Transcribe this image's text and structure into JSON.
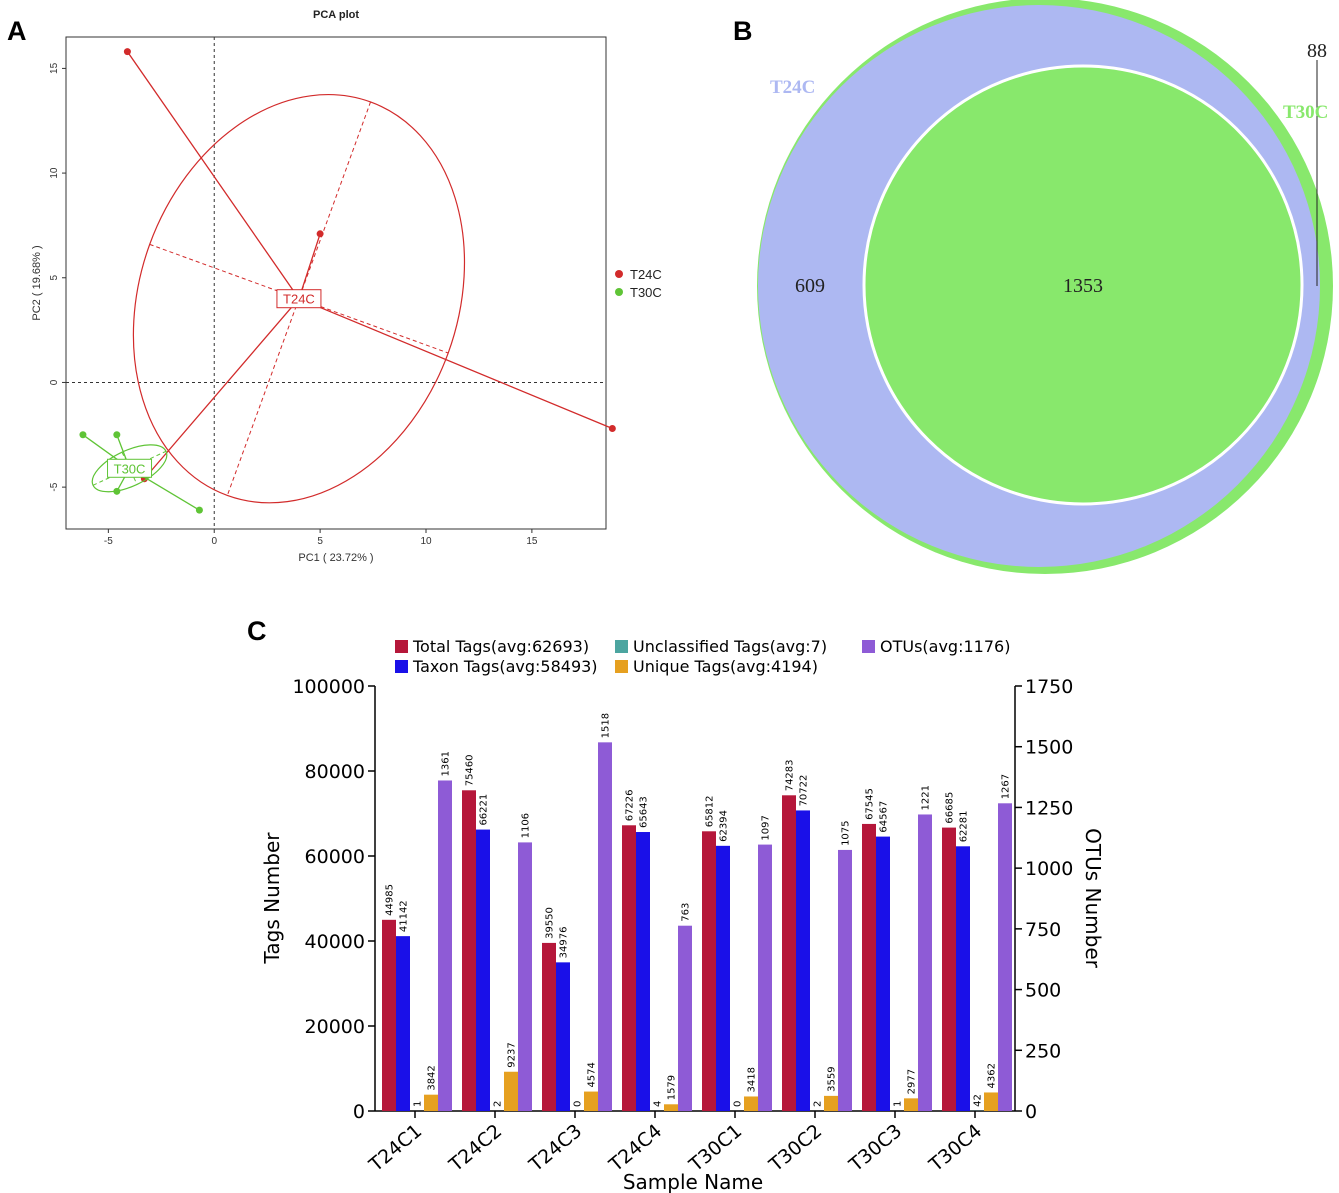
{
  "panels": {
    "a": "A",
    "b": "B",
    "c": "C"
  },
  "chart_data": [
    {
      "type": "scatter",
      "title": "PCA plot",
      "xlabel": "PC1 ( 23.72% )",
      "ylabel": "PC2 ( 19.68% )",
      "xlim": [
        -7,
        18.5
      ],
      "ylim": [
        -7,
        16.5
      ],
      "xticks": [
        -5,
        0,
        5,
        10,
        15
      ],
      "yticks": [
        -5,
        0,
        5,
        10,
        15
      ],
      "xtick_labels": [
        "-5",
        "0",
        "5",
        "10",
        "15"
      ],
      "ytick_labels": [
        "-5",
        "0",
        "5",
        "10",
        "15"
      ],
      "legend_position": "right",
      "series": [
        {
          "name": "T24C",
          "color": "#d22b2b",
          "centroid": [
            4.0,
            4.0
          ],
          "points": [
            [
              -4.1,
              15.8
            ],
            [
              5.0,
              7.1
            ],
            [
              18.8,
              -2.2
            ],
            [
              -3.3,
              -4.6
            ]
          ],
          "ellipse": {
            "center": [
              4.0,
              4.0
            ],
            "rx": 7.5,
            "ry": 10.0,
            "rotation_deg": 20
          }
        },
        {
          "name": "T30C",
          "color": "#5fc436",
          "centroid": [
            -4.0,
            -4.1
          ],
          "points": [
            [
              -6.2,
              -2.5
            ],
            [
              -4.6,
              -2.5
            ],
            [
              -4.6,
              -5.2
            ],
            [
              -0.7,
              -6.1
            ]
          ],
          "ellipse": {
            "center": [
              -4.0,
              -4.1
            ],
            "rx": 1.9,
            "ry": 0.85,
            "rotation_deg": -25
          }
        }
      ]
    },
    {
      "type": "venn",
      "sets": [
        {
          "name": "T24C",
          "color": "#adb8f2"
        },
        {
          "name": "T30C",
          "color": "#88e86c"
        }
      ],
      "regions": {
        "T24C_only": "609",
        "shared": "1353",
        "T30C_only": "88"
      }
    },
    {
      "type": "bar",
      "xlabel": "Sample Name",
      "ylabel": "Tags Number",
      "y2label": "OTUs Number",
      "ylim": [
        0,
        100000
      ],
      "y2lim": [
        0,
        1750
      ],
      "yticks": [
        "0",
        "20000",
        "40000",
        "60000",
        "80000",
        "100000"
      ],
      "y2ticks": [
        "0",
        "250",
        "500",
        "750",
        "1000",
        "1250",
        "1500",
        "1750"
      ],
      "categories": [
        "T24C1",
        "T24C2",
        "T24C3",
        "T24C4",
        "T30C1",
        "T30C2",
        "T30C3",
        "T30C4"
      ],
      "legend_position": "top",
      "series": [
        {
          "name": "Total Tags(avg:62693)",
          "color": "#b5173a",
          "axis": "left",
          "values": [
            44985,
            75460,
            39550,
            67226,
            65812,
            74283,
            67545,
            66685
          ],
          "labels": [
            "44985",
            "75460",
            "39550",
            "67226",
            "65812",
            "74283",
            "67545",
            "66685"
          ]
        },
        {
          "name": "Taxon Tags(avg:58493)",
          "color": "#1a10e8",
          "axis": "left",
          "values": [
            41142,
            66221,
            34976,
            65643,
            62394,
            70722,
            64567,
            62281
          ],
          "labels": [
            "41142",
            "66221",
            "34976",
            "65643",
            "62394",
            "70722",
            "64567",
            "62281"
          ]
        },
        {
          "name": "Unclassified Tags(avg:7)",
          "color": "#4ca5a0",
          "axis": "left",
          "values": [
            1,
            2,
            0,
            4,
            0,
            2,
            1,
            42
          ],
          "labels": [
            "1",
            "2",
            "0",
            "4",
            "0",
            "2",
            "1",
            "42"
          ]
        },
        {
          "name": "Unique Tags(avg:4194)",
          "color": "#e6a020",
          "axis": "left",
          "values": [
            3842,
            9237,
            4574,
            1579,
            3418,
            3559,
            2977,
            4362
          ],
          "labels": [
            "3842",
            "9237",
            "4574",
            "1579",
            "3418",
            "3559",
            "2977",
            "4362"
          ]
        },
        {
          "name": "OTUs(avg:1176)",
          "color": "#8e5bd6",
          "axis": "right",
          "values": [
            1361,
            1106,
            1518,
            763,
            1097,
            1075,
            1221,
            1267
          ],
          "labels": [
            "1361",
            "1106",
            "1518",
            "763",
            "1097",
            "1075",
            "1221",
            "1267"
          ]
        }
      ]
    }
  ]
}
